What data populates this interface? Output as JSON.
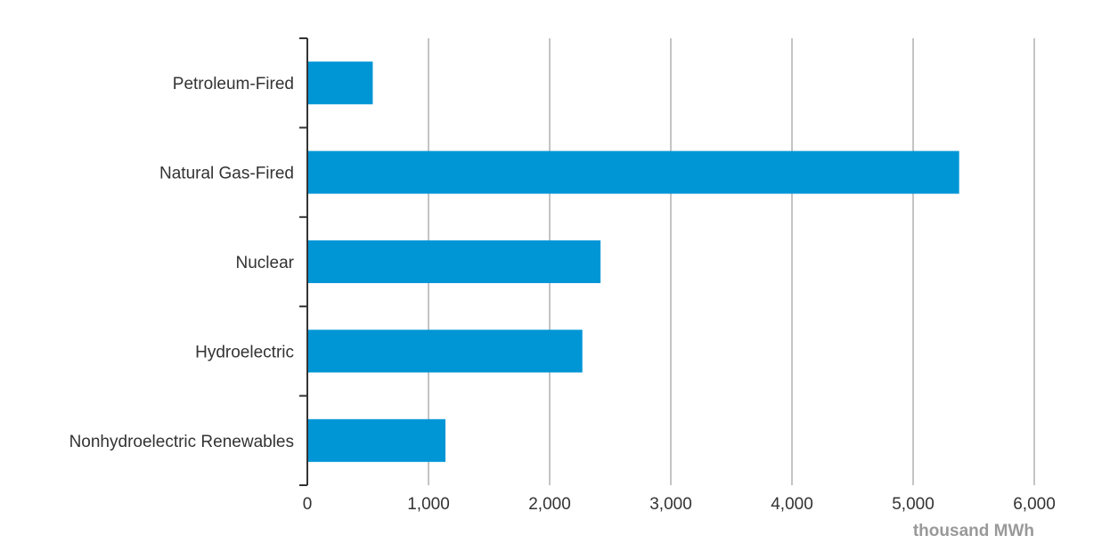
{
  "chart_data": {
    "type": "bar",
    "orientation": "horizontal",
    "categories": [
      "Petroleum-Fired",
      "Natural Gas-Fired",
      "Nuclear",
      "Hydroelectric",
      "Nonhydroelectric Renewables"
    ],
    "values": [
      540,
      5380,
      2420,
      2270,
      1140
    ],
    "x_ticks": [
      0,
      1000,
      2000,
      3000,
      4000,
      5000,
      6000
    ],
    "x_tick_labels": [
      "0",
      "1,000",
      "2,000",
      "3,000",
      "4,000",
      "5,000",
      "6,000"
    ],
    "xlim": [
      0,
      6000
    ],
    "unit_label": "thousand MWh",
    "grid": "vertical",
    "bar_color": "#0096d6",
    "grid_color": "#c4c4c4",
    "axis_color": "#333333"
  }
}
